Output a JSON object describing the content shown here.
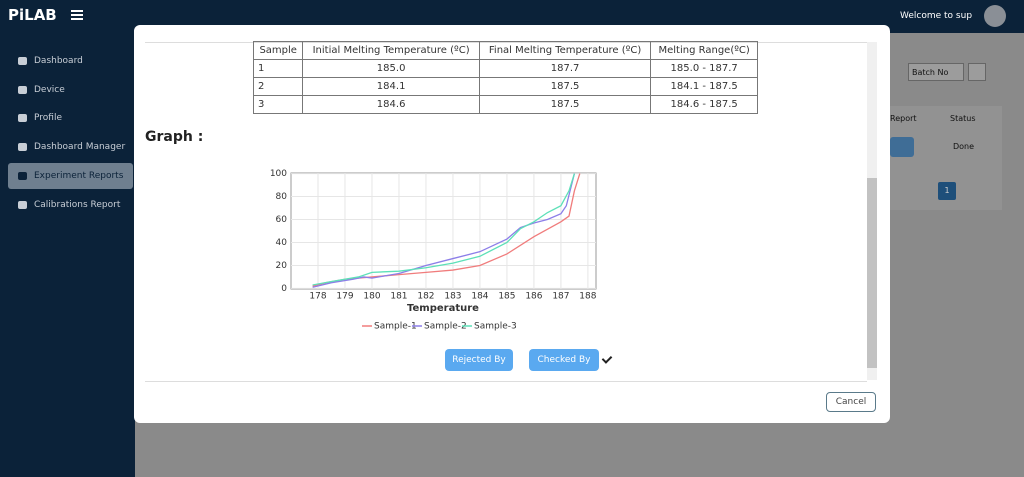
{
  "header": {
    "brand": "PiLAB",
    "welcome": "Welcome to sup"
  },
  "sidebar": {
    "items": [
      "Dashboard",
      "Device",
      "Profile",
      "Dashboard Manager",
      "Experiment Reports",
      "Calibrations Report"
    ]
  },
  "background": {
    "batch_select": "Batch No",
    "columns": [
      "Report",
      "Status"
    ],
    "status": "Done",
    "page": "1"
  },
  "modal": {
    "table": {
      "header": [
        "Sample",
        "Initial Melting Temperature (ºC)",
        "Final Melting Temperature (ºC)",
        "Melting Range(ºC)"
      ],
      "rows": [
        [
          "1",
          "185.0",
          "187.7",
          "185.0 - 187.7"
        ],
        [
          "2",
          "184.1",
          "187.5",
          "184.1 - 187.5"
        ],
        [
          "3",
          "184.6",
          "187.5",
          "184.6 - 187.5"
        ]
      ]
    },
    "graph_heading": "Graph :",
    "buttons": [
      "Rejected By",
      "Checked By"
    ],
    "cancel": "Cancel"
  },
  "chart_data": {
    "type": "line",
    "x_label": "Temperature",
    "xlim": [
      177,
      188.3
    ],
    "ylim": [
      -0.5,
      100.5
    ],
    "xticks": [
      178,
      179,
      180,
      181,
      182,
      183,
      184,
      185,
      186,
      187,
      188
    ],
    "yticks": [
      0,
      20,
      40,
      60,
      80,
      100
    ],
    "grid": true,
    "series": [
      {
        "name": "Sample-1",
        "color": "#f07c7c",
        "x": [
          177.8,
          178.3,
          179,
          180,
          181,
          182,
          183,
          184,
          185,
          186,
          187,
          187.3,
          187.5,
          187.7
        ],
        "values": [
          2,
          5,
          8,
          10,
          12,
          14,
          16,
          20,
          30,
          45,
          58,
          63,
          85,
          100
        ]
      },
      {
        "name": "Sample-2",
        "color": "#8c7ee8",
        "x": [
          177.8,
          178.5,
          179.3,
          179.7,
          180,
          180.5,
          181,
          182,
          183,
          184,
          185,
          185.5,
          186,
          186.5,
          187,
          187.2,
          187.5
        ],
        "values": [
          1,
          5,
          8,
          10,
          9,
          11,
          13,
          20,
          26,
          32,
          43,
          53,
          57,
          60,
          65,
          72,
          100
        ]
      },
      {
        "name": "Sample-3",
        "color": "#5de0b8",
        "x": [
          177.8,
          178.5,
          179.5,
          180,
          181,
          182,
          183,
          184,
          185,
          185.5,
          186,
          186.5,
          187,
          187.3,
          187.5
        ],
        "values": [
          3,
          6,
          10,
          14,
          15,
          18,
          22,
          28,
          40,
          52,
          58,
          66,
          72,
          85,
          100
        ]
      }
    ]
  }
}
